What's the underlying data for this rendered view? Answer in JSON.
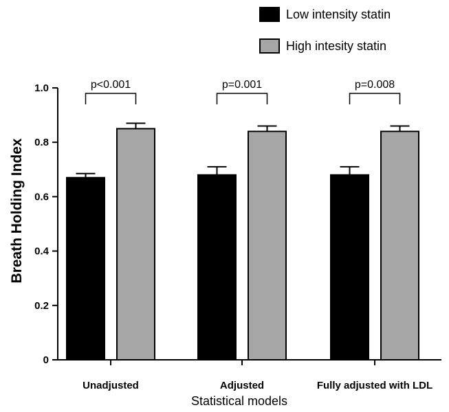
{
  "chart_data": {
    "type": "bar",
    "categories": [
      "Unadjusted",
      "Adjusted",
      "Fully adjusted with LDL"
    ],
    "series": [
      {
        "name": "Low intensity statin",
        "color": "#000000",
        "values": [
          0.67,
          0.68,
          0.68
        ],
        "error_upper": [
          0.015,
          0.03,
          0.03
        ]
      },
      {
        "name": "High intesity statin",
        "color": "#a6a6a6",
        "values": [
          0.85,
          0.84,
          0.84
        ],
        "error_upper": [
          0.02,
          0.02,
          0.02
        ]
      }
    ],
    "annotations": [
      "p<0.001",
      "p=0.001",
      "p=0.008"
    ],
    "ylabel": "Breath Holding Index",
    "xlabel": "Statistical models",
    "ylim": [
      0,
      1.0
    ],
    "yticks": [
      0,
      0.2,
      0.4,
      0.6,
      0.8,
      1.0
    ],
    "ytick_labels": [
      "0",
      "0.2",
      "0.4",
      "0.6",
      "0.8",
      "1.0"
    ],
    "legend_position": "top-right",
    "grid": false
  }
}
